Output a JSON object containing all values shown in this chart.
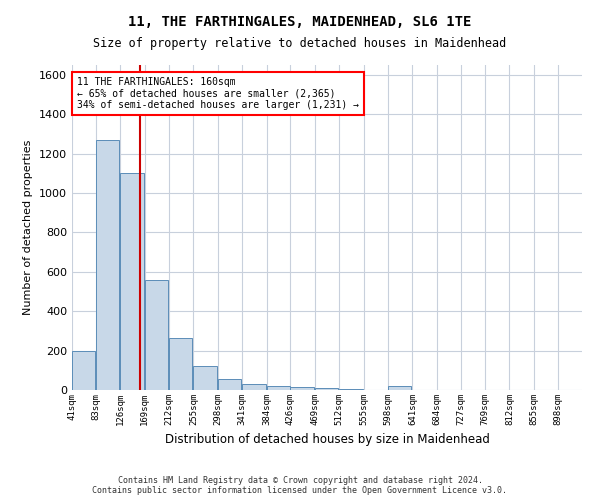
{
  "title": "11, THE FARTHINGALES, MAIDENHEAD, SL6 1TE",
  "subtitle": "Size of property relative to detached houses in Maidenhead",
  "xlabel": "Distribution of detached houses by size in Maidenhead",
  "ylabel": "Number of detached properties",
  "annotation_line1": "11 THE FARTHINGALES: 160sqm",
  "annotation_line2": "← 65% of detached houses are smaller (2,365)",
  "annotation_line3": "34% of semi-detached houses are larger (1,231) →",
  "property_size_sqm": 160,
  "bar_color": "#c8d8e8",
  "bar_edge_color": "#5b8db8",
  "vline_color": "#cc0000",
  "background_color": "#ffffff",
  "grid_color": "#c8d0dc",
  "bin_starts": [
    41,
    83,
    126,
    169,
    212,
    255,
    298,
    341,
    384,
    426,
    469,
    512,
    555,
    598,
    641,
    684,
    727,
    769,
    812,
    855,
    898
  ],
  "values": [
    200,
    1270,
    1100,
    560,
    265,
    120,
    55,
    30,
    20,
    15,
    10,
    5,
    0,
    20,
    0,
    0,
    0,
    0,
    0,
    0
  ],
  "ylim": [
    0,
    1650
  ],
  "yticks": [
    0,
    200,
    400,
    600,
    800,
    1000,
    1200,
    1400,
    1600
  ],
  "footer1": "Contains HM Land Registry data © Crown copyright and database right 2024.",
  "footer2": "Contains public sector information licensed under the Open Government Licence v3.0."
}
